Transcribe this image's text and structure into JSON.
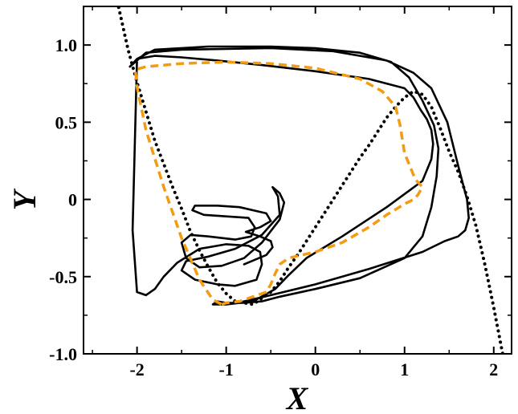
{
  "chart_data": {
    "type": "line",
    "title": "",
    "xlabel": "X",
    "ylabel": "Y",
    "xlim": [
      -2.6,
      2.2
    ],
    "ylim": [
      -1.0,
      1.25
    ],
    "grid": false,
    "legend": "none",
    "x_ticks": [
      {
        "value": -2,
        "label": "-2"
      },
      {
        "value": -1,
        "label": "-1"
      },
      {
        "value": 0,
        "label": "0"
      },
      {
        "value": 1,
        "label": "1"
      },
      {
        "value": 2,
        "label": "2"
      }
    ],
    "y_ticks": [
      {
        "value": -1.0,
        "label": "-1.0"
      },
      {
        "value": -0.5,
        "label": "-0.5"
      },
      {
        "value": 0,
        "label": "0"
      },
      {
        "value": 0.5,
        "label": "0.5"
      },
      {
        "value": 1.0,
        "label": "1.0"
      }
    ],
    "series": [
      {
        "style": "dotted",
        "color": "#000000",
        "kind": "cubic-nullcline",
        "x": [
          -2.22,
          -2.1,
          -2.0,
          -1.9,
          -1.8,
          -1.7,
          -1.6,
          -1.5,
          -1.4,
          -1.3,
          -1.2,
          -1.1,
          -1.0,
          -0.9,
          -0.8,
          -0.7,
          -0.6,
          -0.5,
          -0.4,
          -0.3,
          -0.2,
          -0.1,
          0.0,
          0.1,
          0.2,
          0.3,
          0.4,
          0.5,
          0.6,
          0.7,
          0.8,
          0.9,
          1.0,
          1.1,
          1.2,
          1.3,
          1.4,
          1.5,
          1.6,
          1.7,
          1.8,
          1.9,
          2.0,
          2.1
        ],
        "y": [
          1.28,
          0.97,
          0.76,
          0.57,
          0.38,
          0.23,
          0.08,
          -0.06,
          -0.21,
          -0.33,
          -0.44,
          -0.54,
          -0.61,
          -0.66,
          -0.67,
          -0.68,
          -0.64,
          -0.6,
          -0.53,
          -0.44,
          -0.36,
          -0.27,
          -0.18,
          -0.09,
          0.0,
          0.09,
          0.18,
          0.27,
          0.35,
          0.44,
          0.53,
          0.6,
          0.66,
          0.7,
          0.68,
          0.6,
          0.46,
          0.31,
          0.18,
          0.02,
          -0.17,
          -0.42,
          -0.7,
          -1.0
        ]
      },
      {
        "style": "solid",
        "color": "#000000",
        "kind": "trajectory",
        "x": [
          -0.8,
          -0.55,
          -0.48,
          -0.5,
          -0.62,
          -0.78,
          -0.62,
          -0.5,
          -0.55,
          -0.85,
          -1.1,
          -1.35,
          -1.38,
          -1.25,
          -1.0,
          -0.75,
          -0.68,
          -0.72,
          -0.9,
          -1.2,
          -1.4,
          -1.5,
          -1.45,
          -1.3,
          -1.05,
          -0.8,
          -0.6,
          -0.4,
          -0.35,
          -0.4,
          -0.48,
          -0.42,
          -0.4,
          -0.6,
          -0.9,
          -1.2,
          -1.45,
          -1.5,
          -1.35,
          -1.1,
          -0.9,
          -0.66,
          -0.6,
          -0.62,
          -0.75,
          -1.0,
          -1.3,
          -1.55,
          -1.7,
          -1.8,
          -1.9,
          -2.0,
          -2.05,
          -2.0,
          -1.8,
          -1.2,
          -0.5,
          0.0,
          0.5,
          0.85,
          1.05,
          1.2,
          1.33,
          1.38,
          1.36,
          1.3,
          1.2,
          1.0,
          0.5,
          0.0,
          -0.4,
          -0.6,
          -0.8,
          -1.0,
          -1.1,
          -1.15,
          -1.0,
          -0.7,
          -0.45,
          -0.3,
          -0.1,
          0.3,
          0.8,
          1.2,
          1.3,
          1.32,
          1.3,
          1.25,
          1.18,
          1.1,
          1.0,
          0.6,
          0.0,
          -0.6,
          -1.1,
          -1.5,
          -1.8,
          -2.0,
          -2.08,
          -1.9,
          -1.5,
          -0.5,
          0.2,
          0.8,
          1.1,
          1.3,
          1.48,
          1.6,
          1.7,
          1.72,
          1.68,
          1.6,
          1.45,
          1.2,
          0.6,
          0.0,
          -0.5,
          -0.8,
          -1.0
        ],
        "y": [
          -0.42,
          -0.36,
          -0.31,
          -0.27,
          -0.24,
          -0.21,
          -0.18,
          -0.14,
          -0.09,
          -0.05,
          -0.04,
          -0.04,
          -0.07,
          -0.1,
          -0.11,
          -0.12,
          -0.18,
          -0.24,
          -0.26,
          -0.24,
          -0.23,
          -0.28,
          -0.38,
          -0.44,
          -0.43,
          -0.38,
          -0.28,
          -0.13,
          -0.02,
          0.04,
          0.08,
          0.02,
          -0.1,
          -0.23,
          -0.32,
          -0.37,
          -0.4,
          -0.46,
          -0.52,
          -0.55,
          -0.56,
          -0.52,
          -0.42,
          -0.34,
          -0.3,
          -0.29,
          -0.32,
          -0.41,
          -0.5,
          -0.58,
          -0.62,
          -0.6,
          -0.2,
          0.91,
          0.97,
          0.99,
          0.99,
          0.98,
          0.95,
          0.89,
          0.79,
          0.64,
          0.48,
          0.33,
          0.15,
          -0.05,
          -0.24,
          -0.38,
          -0.51,
          -0.58,
          -0.63,
          -0.66,
          -0.67,
          -0.67,
          -0.66,
          -0.68,
          -0.68,
          -0.66,
          -0.58,
          -0.49,
          -0.38,
          -0.24,
          -0.05,
          0.12,
          0.26,
          0.36,
          0.45,
          0.52,
          0.58,
          0.66,
          0.72,
          0.78,
          0.83,
          0.87,
          0.9,
          0.92,
          0.93,
          0.91,
          0.86,
          0.95,
          0.97,
          0.98,
          0.96,
          0.9,
          0.82,
          0.72,
          0.5,
          0.22,
          0.0,
          -0.12,
          -0.2,
          -0.24,
          -0.27,
          -0.34,
          -0.45,
          -0.55,
          -0.62,
          -0.66,
          -0.68
        ]
      },
      {
        "style": "dashed",
        "color": "#f39c12",
        "kind": "trajectory",
        "x": [
          -1.05,
          -1.0,
          -0.85,
          -0.7,
          -0.55,
          -0.5,
          -0.45,
          -0.4,
          -0.3,
          0.0,
          0.3,
          0.6,
          0.8,
          1.0,
          1.1,
          1.15,
          1.18,
          1.2,
          1.12,
          1.0,
          0.95,
          0.9,
          0.75,
          0.5,
          0.0,
          -0.5,
          -1.0,
          -1.5,
          -1.9,
          -2.02,
          -2.0,
          -1.9,
          -1.7,
          -1.5,
          -1.3,
          -1.15,
          -1.05
        ],
        "y": [
          -0.68,
          -0.67,
          -0.66,
          -0.63,
          -0.6,
          -0.55,
          -0.48,
          -0.42,
          -0.38,
          -0.34,
          -0.28,
          -0.18,
          -0.1,
          -0.03,
          0.0,
          0.03,
          0.06,
          0.08,
          0.13,
          0.3,
          0.48,
          0.6,
          0.7,
          0.78,
          0.85,
          0.88,
          0.89,
          0.88,
          0.86,
          0.84,
          0.73,
          0.45,
          0.08,
          -0.25,
          -0.52,
          -0.65,
          -0.68
        ]
      }
    ]
  }
}
